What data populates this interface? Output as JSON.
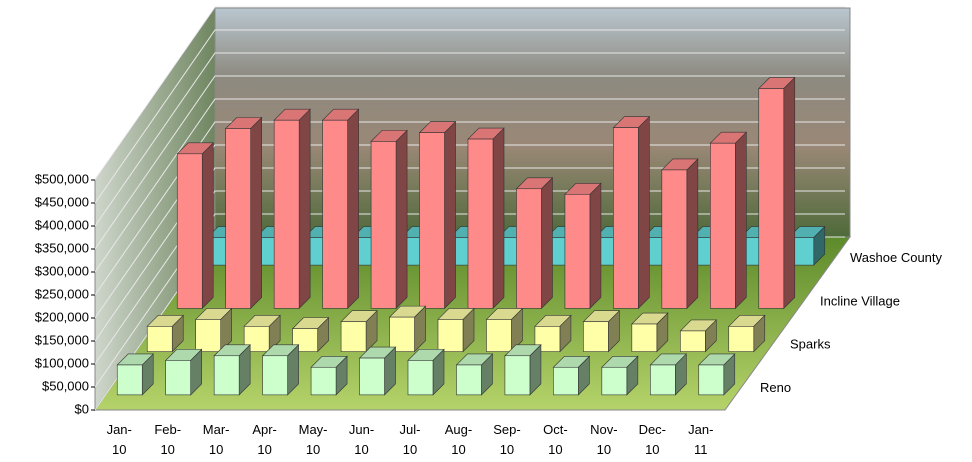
{
  "chart_data": {
    "type": "bar3d",
    "categories": [
      "Jan-10",
      "Feb-10",
      "Mar-10",
      "Apr-10",
      "May-10",
      "Jun-10",
      "Jul-10",
      "Aug-10",
      "Sep-10",
      "Oct-10",
      "Nov-10",
      "Dec-10",
      "Jan-11"
    ],
    "series": [
      {
        "name": "Reno",
        "color": "#ccffcc",
        "values": [
          65000,
          75000,
          85000,
          85000,
          60000,
          80000,
          75000,
          65000,
          85000,
          60000,
          60000,
          65000,
          65000
        ]
      },
      {
        "name": "Sparks",
        "color": "#ffffa8",
        "values": [
          55000,
          70000,
          55000,
          50000,
          65000,
          75000,
          70000,
          70000,
          55000,
          65000,
          60000,
          45000,
          55000
        ]
      },
      {
        "name": "Incline Village",
        "color": "#ff8a8a",
        "values": [
          336000,
          391000,
          409000,
          409000,
          363000,
          382000,
          368000,
          260000,
          248000,
          393000,
          301000,
          359000,
          478000
        ]
      },
      {
        "name": "Washoe County",
        "color": "#5fcfcf",
        "values": [
          60000,
          60000,
          60000,
          60000,
          60000,
          60000,
          60000,
          60000,
          60000,
          60000,
          60000,
          60000,
          60000
        ]
      }
    ],
    "ylim": [
      0,
      500000
    ],
    "yticks": [
      {
        "value": 0,
        "label": "$0"
      },
      {
        "value": 50000,
        "label": "$50,000"
      },
      {
        "value": 100000,
        "label": "$100,000"
      },
      {
        "value": 150000,
        "label": "$150,000"
      },
      {
        "value": 200000,
        "label": "$200,000"
      },
      {
        "value": 250000,
        "label": "$250,000"
      },
      {
        "value": 300000,
        "label": "$300,000"
      },
      {
        "value": 350000,
        "label": "$350,000"
      },
      {
        "value": 400000,
        "label": "$400,000"
      },
      {
        "value": 450000,
        "label": "$450,000"
      },
      {
        "value": 500000,
        "label": "$500,000"
      }
    ],
    "grid": true
  }
}
